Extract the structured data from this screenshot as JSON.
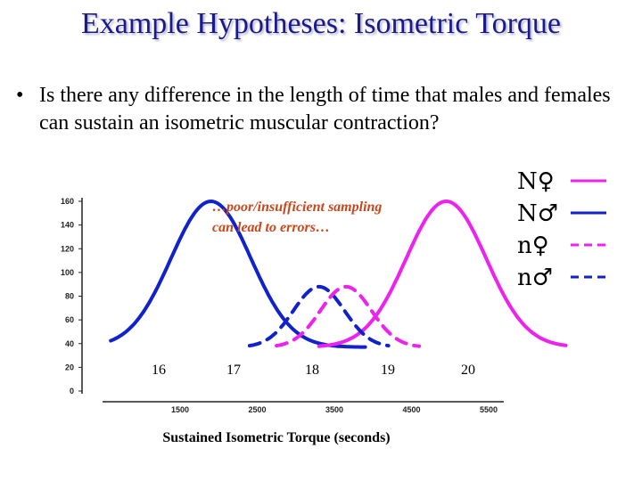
{
  "slide": {
    "title": "Example Hypotheses: Isometric Torque",
    "bullet_marker": "•",
    "bullet_text": "Is there any difference in the length of time that males and females can sustain an isometric muscular contraction?"
  },
  "chart_data": {
    "type": "line",
    "xlabel": "Sustained Isometric Torque (seconds)",
    "ylabel": "",
    "ylim": [
      0,
      160
    ],
    "yticks": [
      "0",
      "20",
      "40",
      "60",
      "80",
      "100",
      "120",
      "140",
      "160"
    ],
    "xticks": [
      "1500",
      "2500",
      "3500",
      "4500",
      "5500"
    ],
    "secondary_xticks": [
      "16",
      "17",
      "18",
      "19",
      "20"
    ],
    "annotation": "…poor/insufficient sampling can lead to errors…",
    "legend": [
      {
        "label": "N♀",
        "color": "#ee22ee",
        "style": "solid"
      },
      {
        "label": "N♂",
        "color": "#1122cc",
        "style": "solid"
      },
      {
        "label": "n♀",
        "color": "#ee22ee",
        "style": "dashed"
      },
      {
        "label": "n♂",
        "color": "#1122cc",
        "style": "dashed"
      }
    ],
    "series": [
      {
        "name": "N♂",
        "color": "#1122cc",
        "style": "solid",
        "base": 37,
        "peak": 160,
        "center": 1900,
        "sigma": 520,
        "xmin": 600,
        "xmax": 3900
      },
      {
        "name": "N♀",
        "color": "#ee22ee",
        "style": "solid",
        "base": 37,
        "peak": 160,
        "center": 4950,
        "sigma": 520,
        "xmin": 3300,
        "xmax": 6500
      },
      {
        "name": "n♂",
        "color": "#1122cc",
        "style": "dashed",
        "base": 37,
        "peak": 88,
        "center": 3300,
        "sigma": 330,
        "xmin": 2400,
        "xmax": 4200
      },
      {
        "name": "n♀",
        "color": "#ee22ee",
        "style": "dashed",
        "base": 37,
        "peak": 88,
        "center": 3650,
        "sigma": 330,
        "xmin": 2750,
        "xmax": 4600
      }
    ]
  }
}
